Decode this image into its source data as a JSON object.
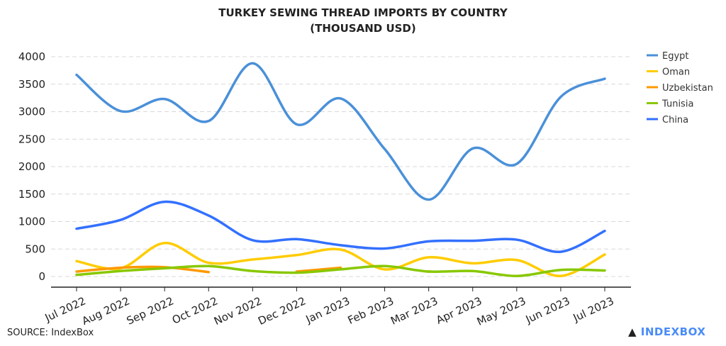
{
  "chart_data": {
    "type": "line",
    "title": "TURKEY SEWING THREAD IMPORTS BY COUNTRY",
    "subtitle": "(THOUSAND USD)",
    "xlabel": "",
    "ylabel": "",
    "ylim": [
      0,
      4000
    ],
    "yticks": [
      0,
      500,
      1000,
      1500,
      2000,
      2500,
      3000,
      3500,
      4000
    ],
    "grid": true,
    "legend": "right",
    "categories": [
      "Jul 2022",
      "Aug 2022",
      "Sep 2022",
      "Oct 2022",
      "Nov 2022",
      "Dec 2022",
      "Jan 2023",
      "Feb 2023",
      "Mar 2023",
      "Apr 2023",
      "May 2023",
      "Jun 2023",
      "Jul 2023"
    ],
    "series": [
      {
        "name": "Egypt",
        "color": "#4a90d9",
        "values": [
          3670,
          3010,
          3230,
          2830,
          3880,
          2770,
          3240,
          2320,
          1400,
          2330,
          2050,
          3270,
          3600
        ]
      },
      {
        "name": "Oman",
        "color": "#ffcc00",
        "values": [
          280,
          150,
          610,
          250,
          310,
          390,
          490,
          130,
          350,
          240,
          300,
          10,
          400
        ]
      },
      {
        "name": "Uzbekistan",
        "color": "#ff9900",
        "values": [
          90,
          160,
          170,
          80,
          null,
          90,
          160,
          null,
          90,
          null,
          null,
          null,
          null
        ]
      },
      {
        "name": "Tunisia",
        "color": "#88c800",
        "values": [
          30,
          100,
          150,
          190,
          100,
          70,
          130,
          190,
          90,
          100,
          10,
          120,
          110
        ]
      },
      {
        "name": "China",
        "color": "#3370ff",
        "values": [
          870,
          1030,
          1360,
          1110,
          660,
          680,
          570,
          510,
          640,
          650,
          670,
          450,
          830
        ]
      }
    ]
  },
  "source": "SOURCE: IndexBox",
  "logo_text": "INDEXBOX"
}
